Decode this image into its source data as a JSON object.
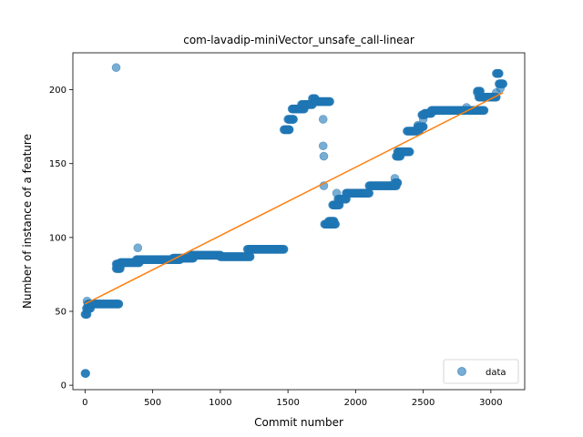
{
  "chart_data": {
    "type": "scatter",
    "title": "com-lavadip-miniVector_unsafe_call-linear",
    "xlabel": "Commit number",
    "ylabel": "Number of instance of a feature",
    "xlim": [
      -90,
      3250
    ],
    "ylim": [
      -3,
      225
    ],
    "xticks": [
      0,
      500,
      1000,
      1500,
      2000,
      2500,
      3000
    ],
    "yticks": [
      0,
      50,
      100,
      150,
      200
    ],
    "grid": false,
    "legend": {
      "position": "lower-right",
      "entries": [
        "data"
      ]
    },
    "colors": {
      "data": "#1f77b4",
      "fit": "#ff7f0e"
    },
    "point_alpha": 0.6,
    "series": [
      {
        "name": "data",
        "kind": "scatter",
        "segments": [
          {
            "x": [
              0,
              5
            ],
            "y": 8
          },
          {
            "x": [
              0,
              15
            ],
            "y": 48
          },
          {
            "x": [
              10,
              40
            ],
            "y": 52
          },
          {
            "x": [
              20,
              250
            ],
            "y": 55
          },
          {
            "x": [
              230,
              260
            ],
            "y": 79
          },
          {
            "x": [
              230,
              270
            ],
            "y": 82
          },
          {
            "x": [
              260,
              400
            ],
            "y": 83
          },
          {
            "x": [
              380,
              700
            ],
            "y": 85
          },
          {
            "x": [
              650,
              800
            ],
            "y": 86
          },
          {
            "x": [
              780,
              1000
            ],
            "y": 88
          },
          {
            "x": [
              1000,
              1220
            ],
            "y": 87
          },
          {
            "x": [
              1200,
              1470
            ],
            "y": 92
          },
          {
            "x": [
              1470,
              1510
            ],
            "y": 173
          },
          {
            "x": [
              1500,
              1540
            ],
            "y": 180
          },
          {
            "x": [
              1530,
              1620
            ],
            "y": 187
          },
          {
            "x": [
              1600,
              1680
            ],
            "y": 190
          },
          {
            "x": [
              1680,
              1700
            ],
            "y": 194
          },
          {
            "x": [
              1700,
              1810
            ],
            "y": 192
          },
          {
            "x": [
              1770,
              1850
            ],
            "y": 109
          },
          {
            "x": [
              1800,
              1840
            ],
            "y": 111
          },
          {
            "x": [
              1830,
              1880
            ],
            "y": 122
          },
          {
            "x": [
              1870,
              1930
            ],
            "y": 126
          },
          {
            "x": [
              1930,
              2100
            ],
            "y": 130
          },
          {
            "x": [
              2100,
              2300
            ],
            "y": 135
          },
          {
            "x": [
              2290,
              2310
            ],
            "y": 137
          },
          {
            "x": [
              2300,
              2330
            ],
            "y": 155
          },
          {
            "x": [
              2310,
              2400
            ],
            "y": 158
          },
          {
            "x": [
              2380,
              2470
            ],
            "y": 172
          },
          {
            "x": [
              2460,
              2500
            ],
            "y": 175
          },
          {
            "x": [
              2490,
              2510
            ],
            "y": 183
          },
          {
            "x": [
              2510,
              2560
            ],
            "y": 184
          },
          {
            "x": [
              2560,
              2950
            ],
            "y": 186
          },
          {
            "x": [
              2900,
              2920
            ],
            "y": 199
          },
          {
            "x": [
              2910,
              3040
            ],
            "y": 195
          },
          {
            "x": [
              3060,
              3090
            ],
            "y": 204
          },
          {
            "x": [
              3040,
              3060
            ],
            "y": 211
          }
        ],
        "points": [
          [
            15,
            57
          ],
          [
            230,
            215
          ],
          [
            390,
            93
          ],
          [
            1760,
            180
          ],
          [
            1760,
            162
          ],
          [
            1765,
            155
          ],
          [
            1765,
            135
          ],
          [
            1860,
            130
          ],
          [
            2290,
            140
          ],
          [
            2460,
            176
          ],
          [
            2500,
            180
          ],
          [
            2820,
            188
          ],
          [
            2900,
            198
          ],
          [
            3040,
            198
          ],
          [
            3070,
            201
          ]
        ]
      },
      {
        "name": "fit",
        "kind": "line",
        "x": [
          0,
          3090
        ],
        "y": [
          55,
          198
        ]
      }
    ]
  }
}
